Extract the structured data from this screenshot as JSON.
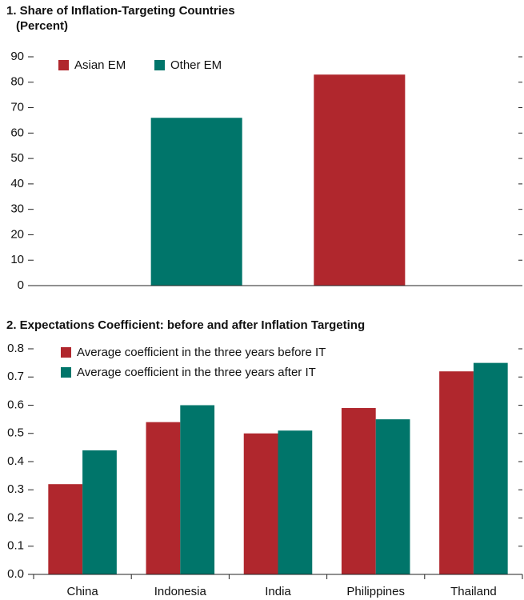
{
  "chart_data": [
    {
      "type": "bar",
      "title": "1. Share of Inflation-Targeting Countries",
      "subtitle": "(Percent)",
      "categories": [
        null,
        null
      ],
      "series": [
        {
          "name": "Asian EM",
          "color": "#b0272d",
          "values": [
            null,
            83
          ]
        },
        {
          "name": "Other EM",
          "color": "#00756a",
          "values": [
            66,
            null
          ]
        }
      ],
      "ylim": [
        0,
        90
      ],
      "yticks": [
        0,
        10,
        20,
        30,
        40,
        50,
        60,
        70,
        80,
        90
      ],
      "legend": "upper left"
    },
    {
      "type": "bar",
      "title": "2. Expectations Coefficient: before and after Inflation Targeting",
      "categories": [
        "China",
        "Indonesia",
        "India",
        "Philippines",
        "Thailand"
      ],
      "series": [
        {
          "name": "Average coefficient in the three years before IT",
          "color": "#b0272d",
          "values": [
            0.32,
            0.54,
            0.5,
            0.59,
            0.72
          ]
        },
        {
          "name": "Average coefficient in the three years after IT",
          "color": "#00756a",
          "values": [
            0.44,
            0.6,
            0.51,
            0.55,
            0.75
          ]
        }
      ],
      "ylim": [
        0,
        0.8
      ],
      "yticks": [
        {
          "value": 0,
          "label": "0.0"
        },
        0.1,
        0.2,
        0.3,
        0.4,
        0.5,
        0.6,
        0.7,
        0.8
      ],
      "legend": "upper left"
    }
  ]
}
